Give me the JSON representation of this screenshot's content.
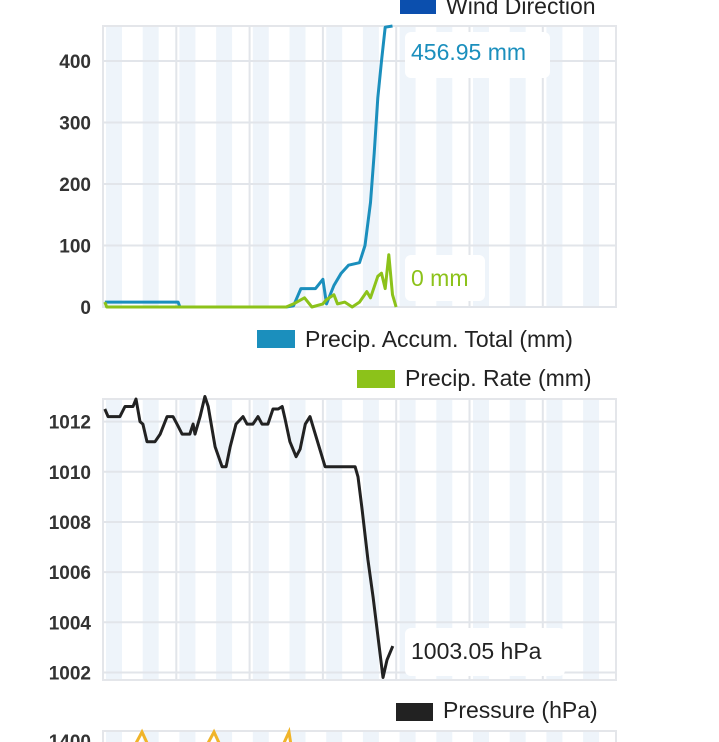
{
  "chart_data": [
    {
      "type": "line",
      "title": "",
      "top_legend": {
        "label": "Wind Direction",
        "color": "#0b4fae"
      },
      "xlim": [
        0,
        140
      ],
      "ylim": [
        0,
        457
      ],
      "yticks": [
        0,
        100,
        200,
        300,
        400
      ],
      "grid": true,
      "legend_placement": "bottom-right",
      "series": [
        {
          "name": "Precip. Accum. Total (mm)",
          "color": "#1b8fbd",
          "last_label": "456.95 mm",
          "x": [
            0.5,
            20.5,
            21,
            50,
            52,
            54,
            58,
            60,
            61,
            63,
            65,
            67,
            70,
            71.5,
            73,
            74,
            75,
            76,
            77,
            79
          ],
          "y": [
            8,
            8,
            0,
            0,
            2,
            30,
            30,
            45,
            5,
            35,
            55,
            68,
            72,
            100,
            170,
            250,
            340,
            400,
            455,
            457
          ]
        },
        {
          "name": "Precip. Rate (mm)",
          "color": "#8cc21a",
          "last_label": "0 mm",
          "x": [
            0.5,
            1,
            50,
            52,
            55,
            57,
            60,
            61,
            63,
            64,
            66,
            68,
            70,
            72,
            73,
            75,
            76,
            77,
            78,
            79,
            80
          ],
          "y": [
            8,
            0,
            0,
            5,
            15,
            0,
            5,
            12,
            20,
            5,
            8,
            0,
            8,
            25,
            15,
            50,
            55,
            30,
            85,
            20,
            0
          ]
        }
      ]
    },
    {
      "type": "line",
      "xlim": [
        0,
        140
      ],
      "ylim": [
        1001.7,
        1012.9
      ],
      "yticks": [
        1002,
        1004,
        1006,
        1008,
        1010,
        1012
      ],
      "grid": true,
      "legend_placement": "bottom-right",
      "series": [
        {
          "name": "Pressure (hPa)",
          "color": "#222222",
          "last_label": "1003.05 hPa",
          "x": [
            0.5,
            1.4,
            4.6,
            6,
            8.2,
            9,
            10.1,
            10.9,
            12,
            14.2,
            15.6,
            17.5,
            19.1,
            20.2,
            21.6,
            23.7,
            24.6,
            25.1,
            26.5,
            27.8,
            28.7,
            30.6,
            32.5,
            33.6,
            34.7,
            36.3,
            38.2,
            39.3,
            40.9,
            42.3,
            43.4,
            45,
            46.4,
            47.8,
            48.9,
            49.7,
            51,
            52.7,
            53.8,
            55.2,
            56.5,
            57.3,
            60.6,
            64.7,
            68.8,
            69.6,
            70.7,
            72.3,
            73.7,
            76.4,
            77.5,
            79.1
          ],
          "y": [
            1012.5,
            1012.2,
            1012.2,
            1012.6,
            1012.6,
            1012.9,
            1012.0,
            1011.9,
            1011.2,
            1011.2,
            1011.5,
            1012.2,
            1012.2,
            1011.9,
            1011.5,
            1011.5,
            1011.9,
            1011.5,
            1012.2,
            1013.0,
            1012.6,
            1011.0,
            1010.2,
            1010.2,
            1011.0,
            1011.9,
            1012.2,
            1011.9,
            1011.9,
            1012.2,
            1011.9,
            1011.9,
            1012.5,
            1012.5,
            1012.6,
            1012.1,
            1011.2,
            1010.6,
            1010.9,
            1011.9,
            1012.2,
            1011.8,
            1010.2,
            1010.2,
            1010.2,
            1009.8,
            1008.5,
            1006.5,
            1005.0,
            1001.8,
            1002.5,
            1003.05
          ]
        }
      ]
    },
    {
      "type": "line",
      "yticks": [
        1400
      ],
      "series": [
        {
          "name": "",
          "color": "#f0b429"
        }
      ]
    }
  ]
}
